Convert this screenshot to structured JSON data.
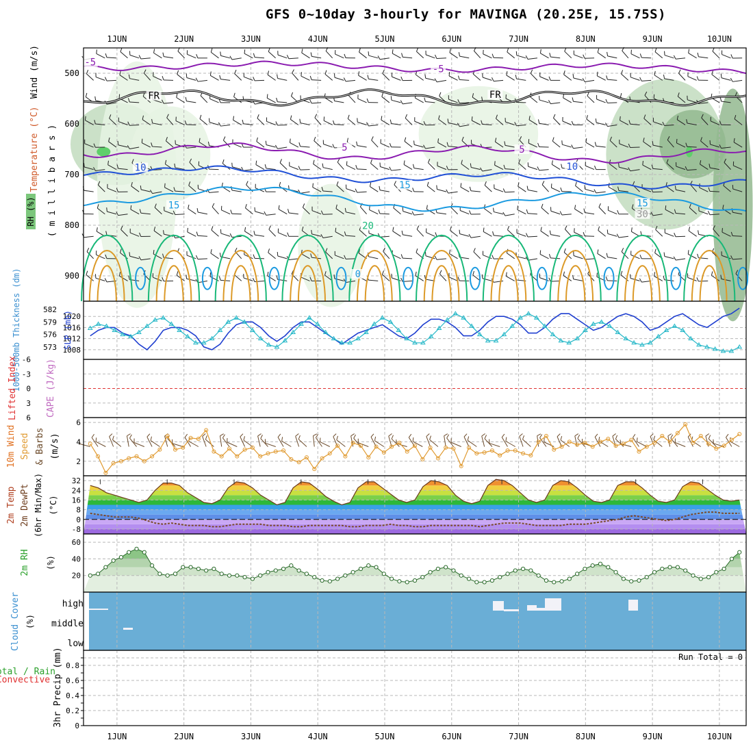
{
  "title": "GFS 0~10day 3-hourly for MAVINGA (20.25E, 15.75S)",
  "x_axis": {
    "day_labels": [
      "1JUN",
      "2JUN",
      "3JUN",
      "4JUN",
      "5JUN",
      "6JUN",
      "7JUN",
      "8JUN",
      "9JUN",
      "10JUN"
    ]
  },
  "colors": {
    "temp_contour_purple": "#8a1bb0",
    "temp_contour_blue": "#1f4fd6",
    "temp_contour_lightblue": "#1a9ae0",
    "temp_contour_green": "#18b878",
    "temp_contour_orange": "#dc9a28",
    "rh_light": "#e6f3e3",
    "rh_mid": "#c2dcbe",
    "rh_dark": "#93b98f",
    "slp_line": "#1f3fd0",
    "thickness_line": "#26b8c8",
    "lifted_index_ref": "#e03030",
    "wind_speed_line": "#e09a30",
    "barb": "#6b4a2a",
    "cloud_bg": "#6aaed6",
    "rh2m_fill": "#d8ead4",
    "precip_grid": "#b0b0b0"
  },
  "chart_data": [
    {
      "panel": "upper-air",
      "type": "contour",
      "ylabel_wind": "Wind (m/s)",
      "ylabel_temp": "Temperature (°C)",
      "ylabel_rh": "RH (%)",
      "ylabel_pressure": "( m i l l i b a r s )",
      "pressure_ticks": [
        500,
        600,
        700,
        800,
        900
      ],
      "ylim": [
        450,
        950
      ],
      "contour_labels": [
        {
          "text": "-5",
          "x": 0.6,
          "p": 482
        },
        {
          "text": "-5",
          "x": 5.8,
          "p": 495
        },
        {
          "text": "FR",
          "x": 1.55,
          "p": 548
        },
        {
          "text": "FR",
          "x": 6.65,
          "p": 546
        },
        {
          "text": "5",
          "x": 4.4,
          "p": 650
        },
        {
          "text": "5",
          "x": 7.05,
          "p": 654
        },
        {
          "text": "10",
          "x": 1.35,
          "p": 690
        },
        {
          "text": "10",
          "x": 7.8,
          "p": 688
        },
        {
          "text": "15",
          "x": 1.85,
          "p": 764
        },
        {
          "text": "15",
          "x": 5.3,
          "p": 724
        },
        {
          "text": "15",
          "x": 8.85,
          "p": 760
        },
        {
          "text": "20",
          "x": 4.75,
          "p": 805
        },
        {
          "text": "0",
          "x": 4.6,
          "p": 900
        },
        {
          "text": "30",
          "x": 8.85,
          "p": 782
        }
      ]
    },
    {
      "panel": "slp-thickness",
      "type": "line",
      "ylabel_left": "1000-500mb Thickness (dm)",
      "ylabel_right": "SLP (mb)",
      "left_ticks": [
        573,
        576,
        579,
        582
      ],
      "right_ticks": [
        1008,
        1012,
        1016,
        1020
      ],
      "series": [
        {
          "name": "SLP (mb)",
          "values": [
            1013,
            1015,
            1016,
            1016,
            1014,
            1013,
            1010,
            1008,
            1011,
            1015,
            1016,
            1016,
            1015,
            1013,
            1009,
            1008,
            1010,
            1014,
            1017,
            1018,
            1018,
            1016,
            1013,
            1011,
            1013,
            1016,
            1018,
            1018,
            1016,
            1014,
            1012,
            1010,
            1012,
            1014,
            1015,
            1016,
            1017,
            1015,
            1013,
            1012,
            1014,
            1017,
            1019,
            1019,
            1018,
            1016,
            1013,
            1013,
            1015,
            1018,
            1020,
            1020,
            1019,
            1017,
            1014,
            1014,
            1016,
            1019,
            1021,
            1021,
            1019,
            1017,
            1015,
            1016,
            1018,
            1020,
            1021,
            1020,
            1018,
            1015,
            1016,
            1018,
            1020,
            1021,
            1019,
            1017,
            1016,
            1018,
            1020,
            1021,
            1023
          ]
        },
        {
          "name": "1000-500mb Thickness (dm)",
          "values": [
            577.5,
            578.5,
            578,
            577,
            576,
            575.5,
            576.5,
            578,
            579.5,
            580,
            578.5,
            577,
            575.5,
            574,
            574,
            575,
            577,
            579,
            580,
            579,
            577,
            575,
            573.5,
            573,
            574.5,
            576.5,
            578.5,
            580,
            578.5,
            576.5,
            575,
            574,
            574,
            575,
            576.5,
            578.5,
            580,
            579,
            577,
            575,
            574,
            574,
            575.5,
            577.5,
            579.5,
            581,
            580,
            578,
            576,
            574.5,
            574.5,
            576,
            578,
            580,
            581,
            580,
            578,
            576,
            574.5,
            574,
            575,
            577,
            578.5,
            579,
            578,
            576.5,
            575,
            574,
            573.5,
            574,
            575.5,
            577,
            578,
            577,
            575,
            573.5,
            573,
            572.5,
            572,
            572,
            573
          ]
        }
      ]
    },
    {
      "panel": "lifted-index",
      "type": "line",
      "ylabel_left": "Lifted Index",
      "ylabel_right": "CAPE (J/kg)",
      "left_ticks": [
        -6,
        -3,
        0,
        3,
        6
      ]
    },
    {
      "panel": "wind10m",
      "type": "line",
      "ylabel": "10m Wind Speed & Barbs (m/s)",
      "y_ticks": [
        2,
        4,
        6
      ],
      "ylim": [
        0.5,
        6.5
      ],
      "series": [
        {
          "name": "10m Wind Speed",
          "values": [
            3.8,
            2.5,
            0.8,
            1.8,
            2.0,
            2.3,
            2.5,
            2.0,
            2.5,
            3.2,
            4.6,
            3.2,
            3.4,
            4.4,
            4.3,
            5.2,
            3.0,
            2.5,
            3.3,
            2.5,
            3.2,
            3.4,
            2.5,
            2.8,
            3.0,
            3.1,
            2.2,
            1.9,
            2.4,
            1.2,
            2.3,
            2.8,
            3.6,
            2.5,
            3.9,
            3.6,
            2.4,
            3.5,
            2.9,
            3.5,
            3.9,
            3.0,
            3.6,
            2.2,
            3.4,
            2.3,
            3.4,
            3.3,
            1.5,
            3.4,
            2.8,
            2.9,
            3.1,
            2.6,
            3.1,
            3.1,
            2.8,
            2.6,
            4.0,
            4.6,
            3.2,
            3.5,
            4.0,
            3.7,
            3.9,
            3.5,
            4.0,
            4.3,
            3.6,
            3.8,
            4.2,
            3.0,
            3.5,
            3.9,
            4.6,
            4.0,
            4.9,
            5.8,
            3.9,
            4.6,
            3.8,
            3.3,
            3.6,
            4.2,
            4.8
          ]
        }
      ]
    },
    {
      "panel": "temp2m",
      "type": "area",
      "ylabel": "2m Temp 2m DewPt (6hr Min/Max) (°C)",
      "y_ticks": [
        32,
        24,
        16,
        8,
        0,
        -8
      ],
      "ylim": [
        -12,
        36
      ],
      "series": [
        {
          "name": "2m Temp",
          "values": [
            28,
            26,
            22,
            20,
            18,
            16,
            14,
            16,
            24,
            30,
            30,
            28,
            22,
            18,
            14,
            13,
            16,
            26,
            31,
            30,
            26,
            20,
            16,
            12,
            14,
            26,
            31,
            30,
            25,
            19,
            15,
            12,
            14,
            26,
            31,
            31,
            26,
            21,
            16,
            14,
            16,
            27,
            32,
            31,
            28,
            20,
            15,
            13,
            15,
            28,
            33,
            32,
            28,
            22,
            16,
            14,
            16,
            28,
            32,
            31,
            26,
            20,
            15,
            14,
            16,
            28,
            31,
            31,
            26,
            20,
            15,
            14,
            16,
            27,
            31,
            30,
            25,
            20,
            16,
            15,
            16
          ]
        },
        {
          "name": "2m DewPt",
          "values": [
            5,
            4,
            3,
            2,
            2,
            2,
            1,
            -1,
            -3,
            -4,
            -3,
            -4,
            -5,
            -5,
            -5,
            -6,
            -6,
            -5,
            -4,
            -4,
            -4,
            -4,
            -5,
            -5,
            -5,
            -6,
            -6,
            -5,
            -5,
            -5,
            -5,
            -5,
            -6,
            -6,
            -5,
            -5,
            -5,
            -4,
            -5,
            -5,
            -6,
            -6,
            -5,
            -5,
            -5,
            -5,
            -5,
            -5,
            -6,
            -5,
            -4,
            -3,
            -3,
            -3,
            -4,
            -5,
            -5,
            -5,
            -5,
            -4,
            -4,
            -4,
            -3,
            -2,
            -1,
            0,
            2,
            3,
            2,
            1,
            0,
            -1,
            0,
            2,
            4,
            5,
            6,
            6,
            5,
            5,
            5
          ]
        }
      ]
    },
    {
      "panel": "rh2m",
      "type": "area",
      "ylabel": "2m RH (%)",
      "y_ticks": [
        20,
        40,
        60
      ],
      "ylim": [
        0,
        70
      ],
      "series": [
        {
          "name": "2m RH",
          "values": [
            20,
            22,
            30,
            38,
            42,
            48,
            52,
            48,
            32,
            22,
            20,
            22,
            30,
            30,
            28,
            26,
            28,
            22,
            20,
            20,
            18,
            16,
            20,
            24,
            26,
            28,
            32,
            26,
            22,
            18,
            14,
            13,
            16,
            20,
            24,
            28,
            32,
            30,
            22,
            16,
            13,
            12,
            14,
            18,
            24,
            28,
            30,
            26,
            20,
            16,
            12,
            12,
            14,
            18,
            22,
            26,
            28,
            26,
            20,
            14,
            12,
            13,
            16,
            22,
            28,
            32,
            34,
            30,
            24,
            16,
            13,
            14,
            18,
            24,
            28,
            30,
            30,
            26,
            20,
            16,
            18,
            24,
            28,
            40,
            48
          ]
        }
      ]
    },
    {
      "panel": "cloud-cover",
      "type": "heatmap",
      "ylabel": "Cloud Cover (%)",
      "levels": [
        "high",
        "middle",
        "low"
      ]
    },
    {
      "panel": "precip",
      "type": "bar",
      "ylabel": "3hr Precip (mm)",
      "ylabel_left": "Total / Rain",
      "ylabel_left2": "Convective",
      "y_ticks": [
        "0",
        "0.2",
        "0.4",
        "0.6",
        "0.8"
      ],
      "ylim": [
        0,
        1
      ],
      "annotation": "Run Total = 0"
    }
  ]
}
